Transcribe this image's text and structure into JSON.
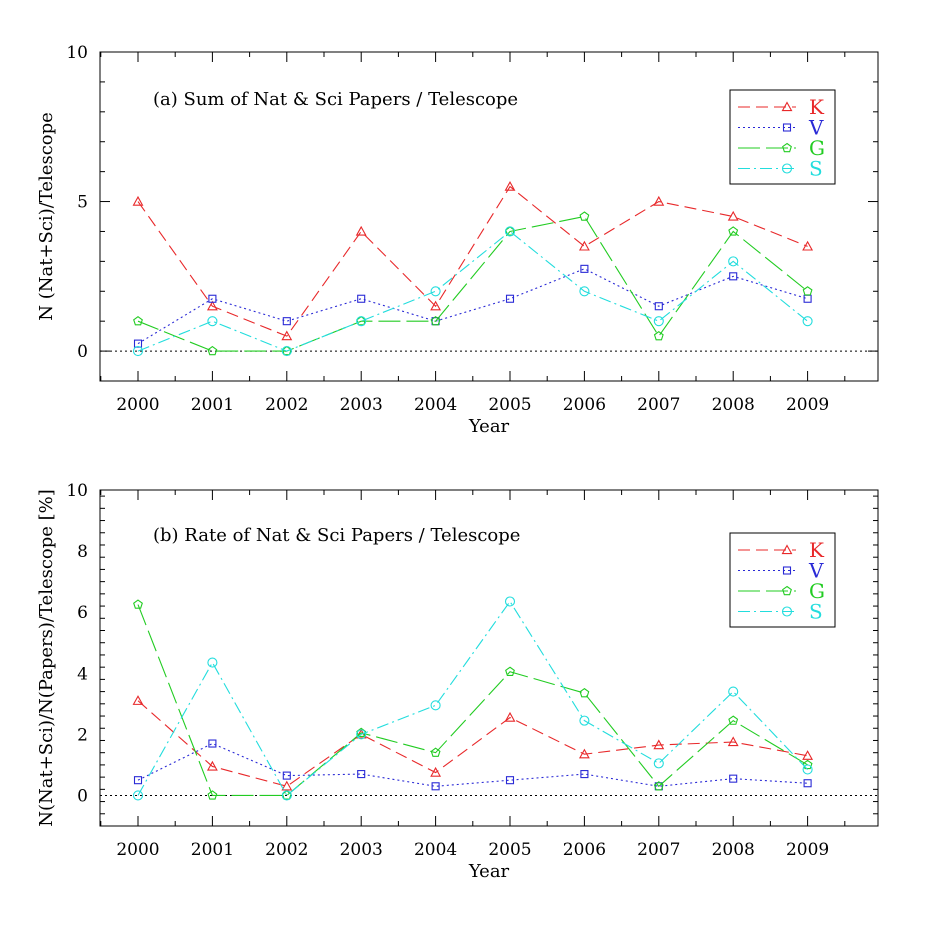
{
  "chart_data": [
    {
      "type": "line",
      "title": "(a) Sum of Nat & Sci Papers / Telescope",
      "xlabel": "Year",
      "ylabel": "N (Nat+Sci)/Telescope",
      "categories": [
        "2000",
        "2001",
        "2002",
        "2003",
        "2004",
        "2005",
        "2006",
        "2007",
        "2008",
        "2009"
      ],
      "ylim": [
        -1,
        10
      ],
      "yticks": [
        0,
        5,
        10
      ],
      "zero_line": true,
      "legend_position": "top-right",
      "series": [
        {
          "name": "K",
          "color": "#e8282a",
          "marker": "triangle",
          "dash": "dashed",
          "values": [
            5,
            1.5,
            0.5,
            4,
            1.5,
            5.5,
            3.5,
            5,
            4.5,
            3.5
          ]
        },
        {
          "name": "V",
          "color": "#2a2ad6",
          "marker": "square",
          "dash": "dotted",
          "values": [
            0.25,
            1.75,
            1,
            1.75,
            1,
            1.75,
            2.75,
            1.5,
            2.5,
            1.75
          ]
        },
        {
          "name": "G",
          "color": "#22cc22",
          "marker": "pentagon",
          "dash": "longdash",
          "values": [
            1,
            0,
            0,
            1,
            1,
            4,
            4.5,
            0.5,
            4,
            2
          ]
        },
        {
          "name": "S",
          "color": "#22dddd",
          "marker": "circle",
          "dash": "dashdot",
          "values": [
            0,
            1,
            0,
            1,
            2,
            4,
            2,
            1,
            3,
            1
          ]
        }
      ]
    },
    {
      "type": "line",
      "title": "(b) Rate of Nat & Sci Papers / Telescope",
      "xlabel": "Year",
      "ylabel": "N(Nat+Sci)/N(Papers)/Telescope [%]",
      "categories": [
        "2000",
        "2001",
        "2002",
        "2003",
        "2004",
        "2005",
        "2006",
        "2007",
        "2008",
        "2009"
      ],
      "ylim": [
        -1,
        10
      ],
      "yticks": [
        0,
        2,
        4,
        6,
        8,
        10
      ],
      "zero_line": true,
      "legend_position": "top-right",
      "series": [
        {
          "name": "K",
          "color": "#e8282a",
          "marker": "triangle",
          "dash": "dashed",
          "values": [
            3.1,
            0.95,
            0.3,
            2.0,
            0.75,
            2.55,
            1.35,
            1.65,
            1.75,
            1.3
          ]
        },
        {
          "name": "V",
          "color": "#2a2ad6",
          "marker": "square",
          "dash": "dotted",
          "values": [
            0.5,
            1.7,
            0.65,
            0.7,
            0.3,
            0.5,
            0.7,
            0.3,
            0.55,
            0.4
          ]
        },
        {
          "name": "G",
          "color": "#22cc22",
          "marker": "pentagon",
          "dash": "longdash",
          "values": [
            6.25,
            0,
            0,
            2.05,
            1.4,
            4.05,
            3.35,
            0.3,
            2.45,
            1.0
          ]
        },
        {
          "name": "S",
          "color": "#22dddd",
          "marker": "circle",
          "dash": "dashdot",
          "values": [
            0,
            4.35,
            0,
            2.0,
            2.95,
            6.35,
            2.45,
            1.05,
            3.4,
            0.85
          ]
        }
      ]
    }
  ]
}
